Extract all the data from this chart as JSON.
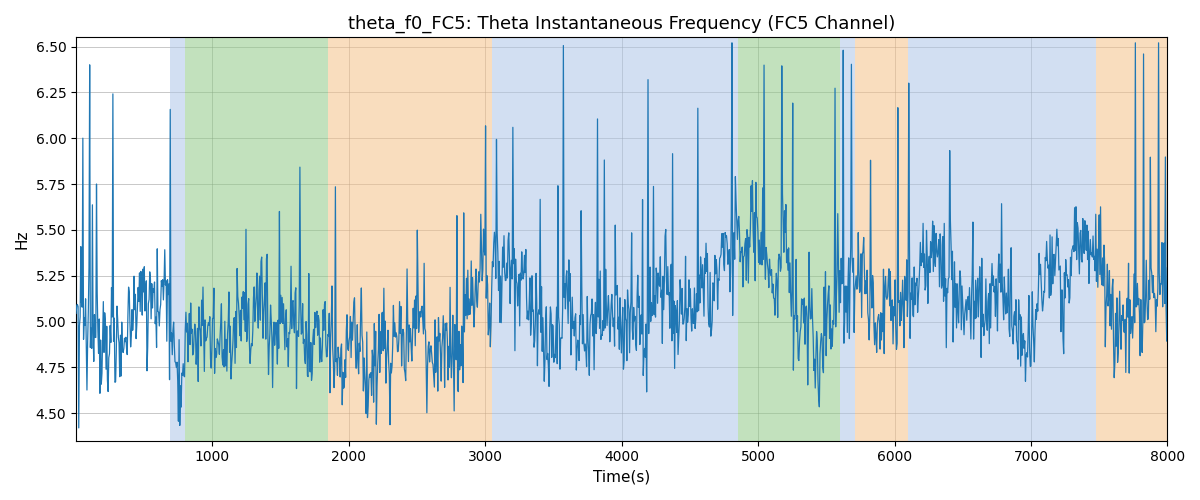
{
  "title": "theta_f0_FC5: Theta Instantaneous Frequency (FC5 Channel)",
  "xlabel": "Time(s)",
  "ylabel": "Hz",
  "xlim": [
    0,
    8000
  ],
  "ylim": [
    4.35,
    6.55
  ],
  "yticks": [
    4.5,
    4.75,
    5.0,
    5.25,
    5.5,
    5.75,
    6.0,
    6.25,
    6.5
  ],
  "xticks": [
    1000,
    2000,
    3000,
    4000,
    5000,
    6000,
    7000,
    8000
  ],
  "line_color": "#1f77b4",
  "background_color": "#ffffff",
  "colored_bands": [
    {
      "xmin": 690,
      "xmax": 800,
      "color": "#aec6e8",
      "alpha": 0.55
    },
    {
      "xmin": 800,
      "xmax": 1850,
      "color": "#90c987",
      "alpha": 0.55
    },
    {
      "xmin": 1850,
      "xmax": 3050,
      "color": "#f5c189",
      "alpha": 0.55
    },
    {
      "xmin": 3050,
      "xmax": 4700,
      "color": "#aec6e8",
      "alpha": 0.55
    },
    {
      "xmin": 4700,
      "xmax": 4850,
      "color": "#aec6e8",
      "alpha": 0.55
    },
    {
      "xmin": 4850,
      "xmax": 5160,
      "color": "#90c987",
      "alpha": 0.55
    },
    {
      "xmin": 5160,
      "xmax": 5600,
      "color": "#90c987",
      "alpha": 0.55
    },
    {
      "xmin": 5600,
      "xmax": 5710,
      "color": "#aec6e8",
      "alpha": 0.55
    },
    {
      "xmin": 5710,
      "xmax": 6100,
      "color": "#f5c189",
      "alpha": 0.55
    },
    {
      "xmin": 6100,
      "xmax": 7480,
      "color": "#aec6e8",
      "alpha": 0.55
    },
    {
      "xmin": 7480,
      "xmax": 8000,
      "color": "#f5c189",
      "alpha": 0.55
    }
  ],
  "n_points": 1600,
  "base_freq": 5.05,
  "seed": 7
}
